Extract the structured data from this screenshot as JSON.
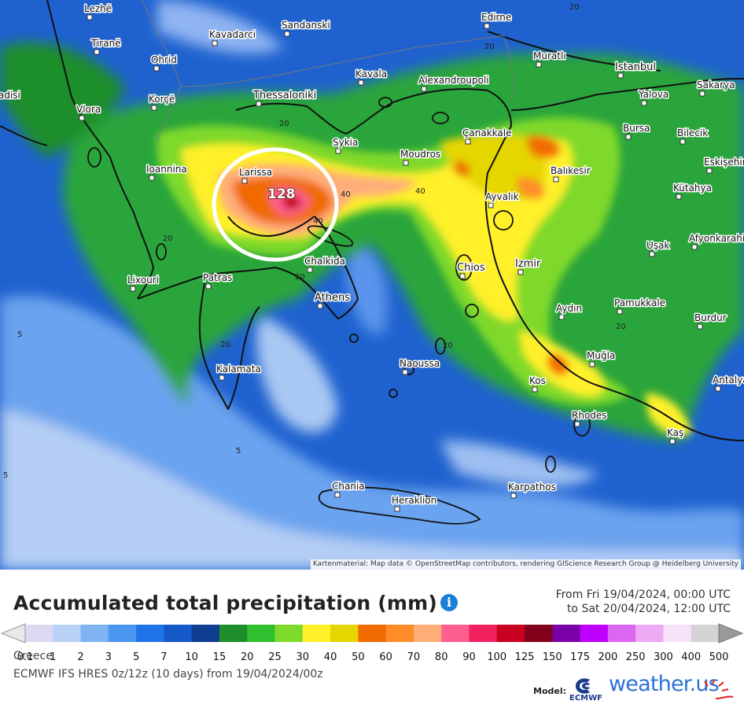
{
  "map": {
    "attribution": "Kartenmaterial: Map data © OpenStreetMap contributors, rendering GIScience Research Group @ Heidelberg University",
    "peak_value": "128",
    "cities": [
      {
        "name": "Lezhë"
      },
      {
        "name": "Tiranë"
      },
      {
        "name": "Ohrid"
      },
      {
        "name": "Kavadarci"
      },
      {
        "name": "Sandanski"
      },
      {
        "name": "Edirne"
      },
      {
        "name": "Muratlı"
      },
      {
        "name": "Istanbul"
      },
      {
        "name": "Sakarya"
      },
      {
        "name": "Korçë"
      },
      {
        "name": "Kavala"
      },
      {
        "name": "Alexandroupoli"
      },
      {
        "name": "Yalova"
      },
      {
        "name": "Vlora"
      },
      {
        "name": "Thessaloniki"
      },
      {
        "name": "Bursa"
      },
      {
        "name": "Bilecik"
      },
      {
        "name": "Sykia"
      },
      {
        "name": "Çanakkale"
      },
      {
        "name": "Ioannina"
      },
      {
        "name": "Larissa"
      },
      {
        "name": "Moudros"
      },
      {
        "name": "Balıkesir"
      },
      {
        "name": "Eskişehir"
      },
      {
        "name": "Kütahya"
      },
      {
        "name": "Ayvalık"
      },
      {
        "name": "Afyonkarahisar"
      },
      {
        "name": "Uşak"
      },
      {
        "name": "Chalkida"
      },
      {
        "name": "Lixouri"
      },
      {
        "name": "Patras"
      },
      {
        "name": "Chios"
      },
      {
        "name": "Izmir"
      },
      {
        "name": "Athens"
      },
      {
        "name": "Pamukkale"
      },
      {
        "name": "Aydın"
      },
      {
        "name": "Burdur"
      },
      {
        "name": "Kalamata"
      },
      {
        "name": "Naoussa"
      },
      {
        "name": "Muğla"
      },
      {
        "name": "Kos"
      },
      {
        "name": "Antalya"
      },
      {
        "name": "Rhodes"
      },
      {
        "name": "Kaş"
      },
      {
        "name": "Chania"
      },
      {
        "name": "Heraklion"
      },
      {
        "name": "Karpathos"
      },
      {
        "name": "adisi"
      }
    ],
    "contour_labels": [
      "20",
      "20",
      "40",
      "40",
      "20",
      "20",
      "20",
      "20",
      "5",
      "5",
      "5",
      "20",
      "40",
      "20"
    ]
  },
  "legend": {
    "title": "Accumulated total precipitation (mm)",
    "info_icon": "info-icon",
    "time_from": "From Fri 19/04/2024, 00:00 UTC",
    "time_to": "to Sat 20/04/2024, 12:00 UTC",
    "colors": [
      "#dcd9f2",
      "#b9d1f5",
      "#7fb2f0",
      "#4b96ee",
      "#1f74e8",
      "#1559c9",
      "#0f3d8f",
      "#1d8e2a",
      "#2fbf2f",
      "#7fd92c",
      "#fff02a",
      "#e5d600",
      "#f06a00",
      "#ff8c29",
      "#ffae7a",
      "#ff5f8f",
      "#f0215e",
      "#c6001e",
      "#82001a",
      "#7a00a8",
      "#c000ff",
      "#db66f2",
      "#eeaaf4",
      "#f6e3f8",
      "#d4d4d4"
    ],
    "tick_labels": [
      "0.1",
      "1",
      "2",
      "3",
      "5",
      "7",
      "10",
      "15",
      "20",
      "25",
      "30",
      "40",
      "50",
      "60",
      "70",
      "80",
      "90",
      "100",
      "125",
      "150",
      "175",
      "200",
      "250",
      "300",
      "400",
      "500"
    ],
    "region": "Greece",
    "model_run": "ECMWF IFS HRES 0z/12z (10 days) from 19/04/2024/00z",
    "model_label": "Model:",
    "ecmwf_label": "ECMWF",
    "brand": "weather.us"
  }
}
